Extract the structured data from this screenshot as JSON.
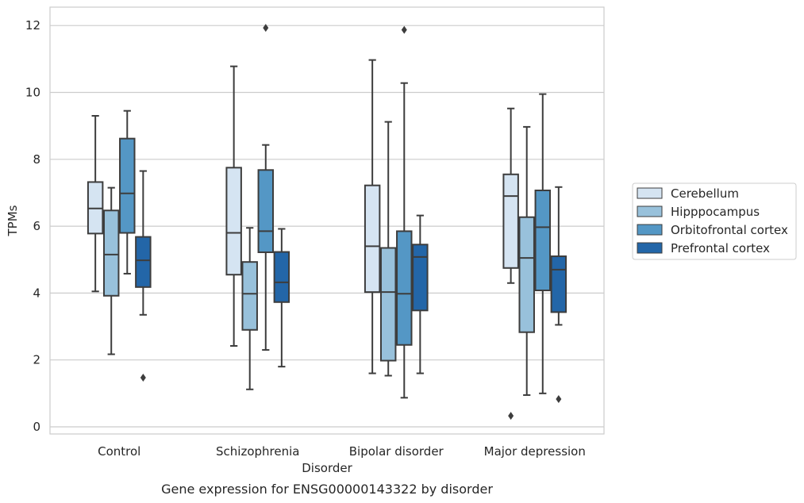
{
  "chart_data": {
    "type": "boxplot",
    "caption": "Gene expression for ENSG00000143322 by disorder",
    "xlabel": "Disorder",
    "ylabel": "TPMs",
    "ylim": [
      -0.2,
      12.5
    ],
    "yticks": [
      0,
      2,
      4,
      6,
      8,
      10,
      12
    ],
    "ytick_labels": [
      "0",
      "2",
      "4",
      "6",
      "8",
      "10",
      "12"
    ],
    "grid": "horizontal",
    "legend_position": "right",
    "categories": [
      "Control",
      "Schizophrenia",
      "Bipolar disorder",
      "Major depression"
    ],
    "series": [
      {
        "name": "Cerebellum",
        "color": "#d5e4f2",
        "boxes": [
          {
            "whisker_low": 4.05,
            "q1": 5.78,
            "median": 6.53,
            "q3": 7.32,
            "whisker_high": 9.3,
            "outliers": []
          },
          {
            "whisker_low": 2.42,
            "q1": 4.55,
            "median": 5.8,
            "q3": 7.75,
            "whisker_high": 10.78,
            "outliers": []
          },
          {
            "whisker_low": 1.6,
            "q1": 4.03,
            "median": 5.4,
            "q3": 7.22,
            "whisker_high": 10.97,
            "outliers": []
          },
          {
            "whisker_low": 4.3,
            "q1": 4.75,
            "median": 6.9,
            "q3": 7.55,
            "whisker_high": 9.52,
            "outliers": [
              0.33
            ]
          }
        ]
      },
      {
        "name": "Hipppocampus",
        "color": "#98c1db",
        "boxes": [
          {
            "whisker_low": 2.17,
            "q1": 3.92,
            "median": 5.15,
            "q3": 6.47,
            "whisker_high": 7.15,
            "outliers": []
          },
          {
            "whisker_low": 1.12,
            "q1": 2.9,
            "median": 3.98,
            "q3": 4.93,
            "whisker_high": 5.95,
            "outliers": []
          },
          {
            "whisker_low": 1.53,
            "q1": 1.98,
            "median": 4.03,
            "q3": 5.35,
            "whisker_high": 9.12,
            "outliers": []
          },
          {
            "whisker_low": 0.95,
            "q1": 2.83,
            "median": 5.05,
            "q3": 6.27,
            "whisker_high": 8.97,
            "outliers": []
          }
        ]
      },
      {
        "name": "Orbitofrontal cortex",
        "color": "#5497c5",
        "boxes": [
          {
            "whisker_low": 4.58,
            "q1": 5.8,
            "median": 6.98,
            "q3": 8.62,
            "whisker_high": 9.45,
            "outliers": []
          },
          {
            "whisker_low": 2.3,
            "q1": 5.22,
            "median": 5.85,
            "q3": 7.68,
            "whisker_high": 8.43,
            "outliers": [
              11.93
            ]
          },
          {
            "whisker_low": 0.87,
            "q1": 2.45,
            "median": 3.98,
            "q3": 5.85,
            "whisker_high": 10.28,
            "outliers": [
              11.87
            ]
          },
          {
            "whisker_low": 1.0,
            "q1": 4.08,
            "median": 5.97,
            "q3": 7.07,
            "whisker_high": 9.95,
            "outliers": []
          }
        ]
      },
      {
        "name": "Prefrontal cortex",
        "color": "#2366a8",
        "boxes": [
          {
            "whisker_low": 3.35,
            "q1": 4.18,
            "median": 4.98,
            "q3": 5.68,
            "whisker_high": 7.65,
            "outliers": [
              1.47
            ]
          },
          {
            "whisker_low": 1.8,
            "q1": 3.73,
            "median": 4.32,
            "q3": 5.23,
            "whisker_high": 5.92,
            "outliers": []
          },
          {
            "whisker_low": 1.6,
            "q1": 3.48,
            "median": 5.08,
            "q3": 5.45,
            "whisker_high": 6.32,
            "outliers": []
          },
          {
            "whisker_low": 3.05,
            "q1": 3.43,
            "median": 4.7,
            "q3": 5.1,
            "whisker_high": 7.17,
            "outliers": [
              0.83
            ]
          }
        ]
      }
    ]
  }
}
